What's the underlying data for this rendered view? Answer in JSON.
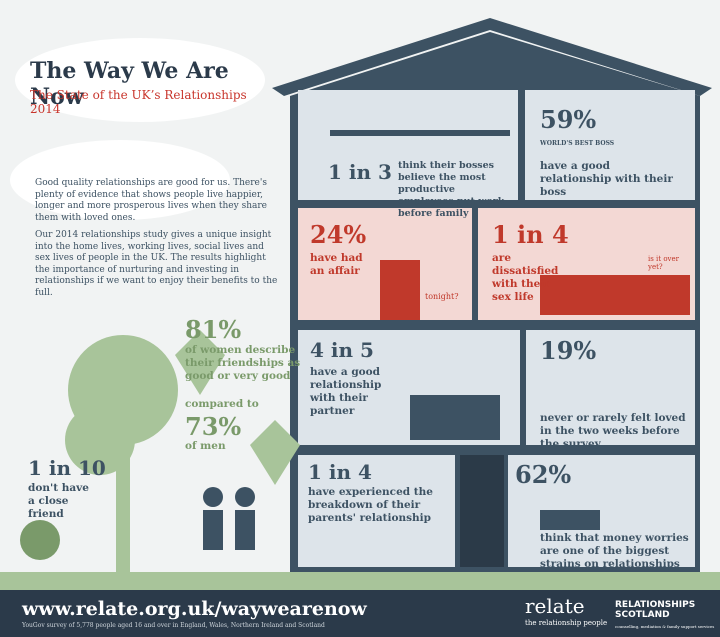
{
  "header": {
    "title": "The Way We Are Now",
    "subtitle": "The State of the UK’s Relationships 2014"
  },
  "intro": [
    "Good quality relationships are good for us. There's plenty of evidence that shows people live happier, longer and more prosperous lives when they share them with loved ones.",
    "Our 2014 relationships study gives a unique insight into the home lives, working lives, social lives and sex lives of people in the UK. The results highlight the importance of nurturing and investing in relationships if we want to enjoy their benefits to the full."
  ],
  "friends": {
    "stat": "81%",
    "text": "of women describe their friendships as good or very good",
    "compare": "compared to",
    "stat2": "73%",
    "text2": "of men"
  },
  "lonely": {
    "stat": "1 in 10",
    "text": "don't have a close friend"
  },
  "rooms": [
    {
      "stat": "1 in 3",
      "text": "think their bosses believe the most productive employees put work before family"
    },
    {
      "stat": "59%",
      "text": "have a good relationship with their boss",
      "mug": "WORLD'S BEST BOSS"
    },
    {
      "stat": "24%",
      "text": "have had an affair",
      "bubble": "tonight?"
    },
    {
      "stat": "1 in 4",
      "text": "are dissatisfied with their sex life",
      "bubble": "is it over yet?"
    },
    {
      "stat": "4 in 5",
      "text": "have a good relationship with their partner"
    },
    {
      "stat": "19%",
      "text": "never or rarely felt loved in the two weeks before the survey"
    },
    {
      "stat": "1 in 4",
      "text": "have experienced the breakdown of their parents' relationship"
    },
    {
      "stat": "62%",
      "text": "think that money worries are one of the biggest strains on relationships"
    }
  ],
  "footer": {
    "url": "www.relate.org.uk/waywearenow",
    "source": "YouGov survey of 5,778 people aged 16 and over in England, Wales, Northern Ireland and Scotland",
    "relate": "relate",
    "relate_tag": "the relationship people",
    "rs": "RELATIONSHIPS SCOTLAND",
    "rs_tag": "counselling, mediation & family support services"
  }
}
